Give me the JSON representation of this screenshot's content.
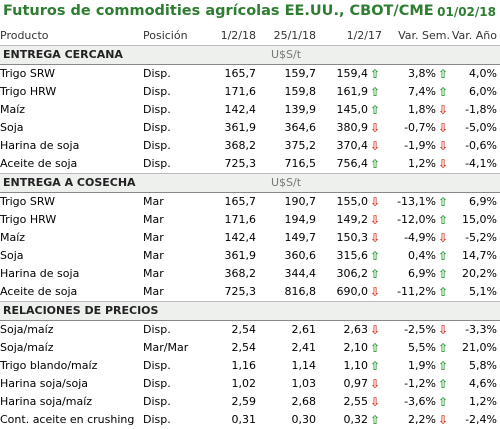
{
  "header": {
    "title": "Futuros de commodities agrícolas EE.UU., CBOT/CME",
    "date": "01/02/18"
  },
  "columns": [
    "Producto",
    "Posición",
    "1/2/18",
    "25/1/18",
    "1/2/17",
    "Var. Sem.",
    "Var. Año"
  ],
  "sections": [
    {
      "title": "ENTREGA CERCANA",
      "unit": "U$S/t",
      "rows": [
        {
          "producto": "Trigo SRW",
          "posicion": "Disp.",
          "c1": "165,7",
          "c2": "159,7",
          "c3": "159,4",
          "dir_c3": "up",
          "sem": "3,8%",
          "dir_sem": "up",
          "ano": "4,0%"
        },
        {
          "producto": "Trigo HRW",
          "posicion": "Disp.",
          "c1": "171,6",
          "c2": "159,8",
          "c3": "161,9",
          "dir_c3": "up",
          "sem": "7,4%",
          "dir_sem": "up",
          "ano": "6,0%"
        },
        {
          "producto": "Maíz",
          "posicion": "Disp.",
          "c1": "142,4",
          "c2": "139,9",
          "c3": "145,0",
          "dir_c3": "up",
          "sem": "1,8%",
          "dir_sem": "down",
          "ano": "-1,8%"
        },
        {
          "producto": "Soja",
          "posicion": "Disp.",
          "c1": "361,9",
          "c2": "364,6",
          "c3": "380,9",
          "dir_c3": "down",
          "sem": "-0,7%",
          "dir_sem": "down",
          "ano": "-5,0%"
        },
        {
          "producto": "Harina de soja",
          "posicion": "Disp.",
          "c1": "368,2",
          "c2": "375,2",
          "c3": "370,4",
          "dir_c3": "down",
          "sem": "-1,9%",
          "dir_sem": "down",
          "ano": "-0,6%"
        },
        {
          "producto": "Aceite de soja",
          "posicion": "Disp.",
          "c1": "725,3",
          "c2": "716,5",
          "c3": "756,4",
          "dir_c3": "up",
          "sem": "1,2%",
          "dir_sem": "down",
          "ano": "-4,1%"
        }
      ]
    },
    {
      "title": "ENTREGA A COSECHA",
      "unit": "U$S/t",
      "rows": [
        {
          "producto": "Trigo SRW",
          "posicion": "Mar",
          "c1": "165,7",
          "c2": "190,7",
          "c3": "155,0",
          "dir_c3": "down",
          "sem": "-13,1%",
          "dir_sem": "up",
          "ano": "6,9%"
        },
        {
          "producto": "Trigo HRW",
          "posicion": "Mar",
          "c1": "171,6",
          "c2": "194,9",
          "c3": "149,2",
          "dir_c3": "down",
          "sem": "-12,0%",
          "dir_sem": "up",
          "ano": "15,0%"
        },
        {
          "producto": "Maíz",
          "posicion": "Mar",
          "c1": "142,4",
          "c2": "149,7",
          "c3": "150,3",
          "dir_c3": "down",
          "sem": "-4,9%",
          "dir_sem": "down",
          "ano": "-5,2%"
        },
        {
          "producto": "Soja",
          "posicion": "Mar",
          "c1": "361,9",
          "c2": "360,6",
          "c3": "315,6",
          "dir_c3": "up",
          "sem": "0,4%",
          "dir_sem": "up",
          "ano": "14,7%"
        },
        {
          "producto": "Harina de soja",
          "posicion": "Mar",
          "c1": "368,2",
          "c2": "344,4",
          "c3": "306,2",
          "dir_c3": "up",
          "sem": "6,9%",
          "dir_sem": "up",
          "ano": "20,2%"
        },
        {
          "producto": "Aceite de soja",
          "posicion": "Mar",
          "c1": "725,3",
          "c2": "816,8",
          "c3": "690,0",
          "dir_c3": "down",
          "sem": "-11,2%",
          "dir_sem": "up",
          "ano": "5,1%"
        }
      ]
    },
    {
      "title": "RELACIONES DE PRECIOS",
      "unit": "",
      "rows": [
        {
          "producto": "Soja/maíz",
          "posicion": "Disp.",
          "c1": "2,54",
          "c2": "2,61",
          "c3": "2,63",
          "dir_c3": "down",
          "sem": "-2,5%",
          "dir_sem": "down",
          "ano": "-3,3%"
        },
        {
          "producto": "Soja/maíz",
          "posicion": "Mar/Mar",
          "c1": "2,54",
          "c2": "2,41",
          "c3": "2,10",
          "dir_c3": "up",
          "sem": "5,5%",
          "dir_sem": "up",
          "ano": "21,0%"
        },
        {
          "producto": "Trigo blando/maíz",
          "posicion": "Disp.",
          "c1": "1,16",
          "c2": "1,14",
          "c3": "1,10",
          "dir_c3": "up",
          "sem": "1,9%",
          "dir_sem": "up",
          "ano": "5,8%"
        },
        {
          "producto": "Harina soja/soja",
          "posicion": "Disp.",
          "c1": "1,02",
          "c2": "1,03",
          "c3": "0,97",
          "dir_c3": "down",
          "sem": "-1,2%",
          "dir_sem": "up",
          "ano": "4,6%"
        },
        {
          "producto": "Harina soja/maíz",
          "posicion": "Disp.",
          "c1": "2,59",
          "c2": "2,68",
          "c3": "2,55",
          "dir_c3": "down",
          "sem": "-3,6%",
          "dir_sem": "up",
          "ano": "1,2%"
        },
        {
          "producto": "Cont. aceite en crushing",
          "posicion": "Disp.",
          "c1": "0,31",
          "c2": "0,30",
          "c3": "0,32",
          "dir_c3": "up",
          "sem": "2,2%",
          "dir_sem": "down",
          "ano": "-2,4%"
        }
      ]
    }
  ],
  "colors": {
    "title": "#2e7d32",
    "up": "#2e9a3a",
    "down": "#d93b30"
  }
}
